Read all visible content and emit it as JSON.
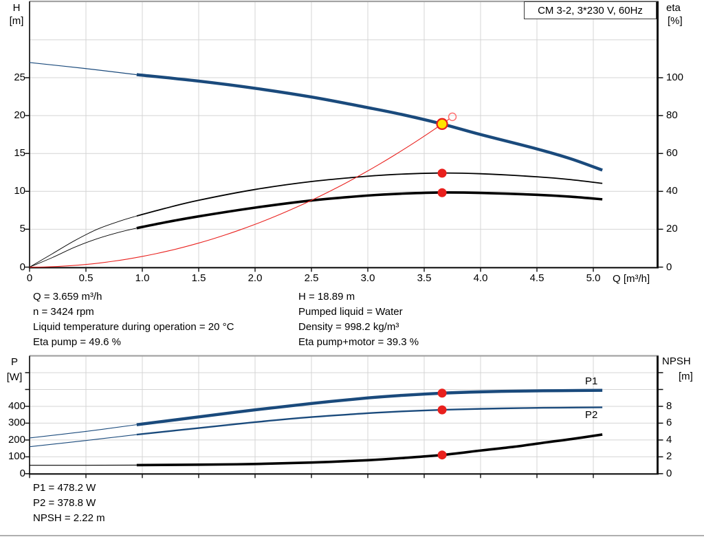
{
  "title_box": {
    "label": "CM 3-2, 3*230 V, 60Hz"
  },
  "colors": {
    "blue": "#1a4a7c",
    "red": "#e9201d",
    "pink": "#ff7070",
    "yellow": "#ffe400",
    "black": "#000000",
    "grid": "#d4d4d4",
    "frame": "#a3a3a3",
    "axis": "#111111"
  },
  "readouts": {
    "mid_left": [
      "Q = 3.659 m³/h",
      "n = 3424 rpm",
      "Liquid temperature during operation = 20 °C",
      "Eta pump = 49.6 %"
    ],
    "mid_right": [
      "H = 18.89 m",
      "Pumped liquid = Water",
      "Density = 998.2 kg/m³",
      "Eta pump+motor = 39.3 %"
    ],
    "bottom": [
      "P1 = 478.2 W",
      "P2 = 378.8 W",
      "NPSH = 2.22 m"
    ]
  },
  "chart_data": [
    {
      "type": "line",
      "title": "CM 3-2, 3*230 V, 60Hz",
      "x": {
        "label": "Q [m³/h]",
        "min": 0,
        "max": 5.57,
        "ticks": [
          {
            "v": 0,
            "label": "0"
          },
          {
            "v": 0.5,
            "label": "0.5"
          },
          {
            "v": 1,
            "label": "1.0"
          },
          {
            "v": 1.5,
            "label": "1.5"
          },
          {
            "v": 2,
            "label": "2.0"
          },
          {
            "v": 2.5,
            "label": "2.5"
          },
          {
            "v": 3,
            "label": "3.0"
          },
          {
            "v": 3.5,
            "label": "3.5"
          },
          {
            "v": 4,
            "label": "4.0"
          },
          {
            "v": 4.5,
            "label": "4.5"
          },
          {
            "v": 5,
            "label": "5.0"
          }
        ]
      },
      "y_left": {
        "name": "H",
        "unit": "[m]",
        "min": 0,
        "max": 35,
        "ticks": [
          {
            "v": 0,
            "label": "0"
          },
          {
            "v": 5,
            "label": "5"
          },
          {
            "v": 10,
            "label": "10"
          },
          {
            "v": 15,
            "label": "15"
          },
          {
            "v": 20,
            "label": "20"
          },
          {
            "v": 25,
            "label": "25"
          }
        ],
        "grid_extra": [
          30
        ]
      },
      "y_right": {
        "name": "eta",
        "unit": "[%]",
        "min": 0,
        "max": 140,
        "ticks": [
          {
            "v": 0,
            "label": "0"
          },
          {
            "v": 20,
            "label": "20"
          },
          {
            "v": 40,
            "label": "40"
          },
          {
            "v": 60,
            "label": "60"
          },
          {
            "v": 80,
            "label": "80"
          },
          {
            "v": 100,
            "label": "100"
          }
        ]
      },
      "series": [
        {
          "id": "eta-pump-curve",
          "name": "Eta pump",
          "scale": "eta",
          "color": "black",
          "split_thin_until": 0.95,
          "points": [
            [
              0,
              0
            ],
            [
              0.2,
              7
            ],
            [
              0.4,
              14
            ],
            [
              0.6,
              20
            ],
            [
              0.8,
              24.3
            ],
            [
              0.95,
              27
            ],
            [
              1.2,
              31
            ],
            [
              1.5,
              35.3
            ],
            [
              2.0,
              41
            ],
            [
              2.5,
              45.2
            ],
            [
              3.0,
              48.0
            ],
            [
              3.3,
              49.1
            ],
            [
              3.659,
              49.7
            ],
            [
              4.0,
              49.3
            ],
            [
              4.5,
              47.7
            ],
            [
              4.8,
              46.2
            ],
            [
              5.08,
              44.2
            ]
          ]
        },
        {
          "id": "eta-pump-motor-curve",
          "name": "Eta pump+motor",
          "scale": "eta",
          "color": "black",
          "split_thin_until": 0.95,
          "points": [
            [
              0,
              0
            ],
            [
              0.2,
              5
            ],
            [
              0.4,
              10.5
            ],
            [
              0.6,
              15
            ],
            [
              0.8,
              18.5
            ],
            [
              0.95,
              20.6
            ],
            [
              1.2,
              23.6
            ],
            [
              1.5,
              26.8
            ],
            [
              2.0,
              31.4
            ],
            [
              2.5,
              35.2
            ],
            [
              3.0,
              37.8
            ],
            [
              3.3,
              38.8
            ],
            [
              3.659,
              39.4
            ],
            [
              4.0,
              39.2
            ],
            [
              4.5,
              38.2
            ],
            [
              4.8,
              37.2
            ],
            [
              5.08,
              35.8
            ]
          ]
        },
        {
          "id": "system-curve",
          "name": "Duty system curve",
          "scale": "H",
          "color": "red",
          "k": 1.4112,
          "q_end": 3.72
        },
        {
          "id": "head-curve",
          "name": "QH curve",
          "scale": "H",
          "color": "blue",
          "split_thin_until": 0.95,
          "points": [
            [
              0,
              27.0
            ],
            [
              0.5,
              26.2
            ],
            [
              0.95,
              25.4
            ],
            [
              1.5,
              24.55
            ],
            [
              2.0,
              23.6
            ],
            [
              2.5,
              22.45
            ],
            [
              3.0,
              21.05
            ],
            [
              3.3,
              20.15
            ],
            [
              3.659,
              18.89
            ],
            [
              4.0,
              17.5
            ],
            [
              4.5,
              15.6
            ],
            [
              4.8,
              14.3
            ],
            [
              5.08,
              12.8
            ]
          ]
        }
      ],
      "markers": [
        {
          "id": "requested-duty-point",
          "scale": "H",
          "q": 3.75,
          "value": 19.84,
          "style": "open"
        },
        {
          "id": "duty-point",
          "scale": "H",
          "q": 3.659,
          "value": 18.89,
          "style": "duty"
        },
        {
          "id": "eta-pump-value-dot",
          "scale": "eta",
          "q": 3.659,
          "value": 49.6,
          "style": "dot"
        },
        {
          "id": "eta-pump-motor-value-dot",
          "scale": "eta",
          "q": 3.659,
          "value": 39.3,
          "style": "dot"
        }
      ]
    },
    {
      "type": "line",
      "x": {
        "label": "",
        "min": 0,
        "max": 5.57,
        "ticks": [
          {
            "v": 0,
            "label": ""
          },
          {
            "v": 0.5,
            "label": ""
          },
          {
            "v": 1,
            "label": ""
          },
          {
            "v": 1.5,
            "label": ""
          },
          {
            "v": 2,
            "label": ""
          },
          {
            "v": 2.5,
            "label": ""
          },
          {
            "v": 3,
            "label": ""
          },
          {
            "v": 3.5,
            "label": ""
          },
          {
            "v": 4,
            "label": ""
          },
          {
            "v": 4.5,
            "label": ""
          },
          {
            "v": 5,
            "label": ""
          }
        ]
      },
      "y_left": {
        "name": "P",
        "unit": "[W]",
        "min": 0,
        "max": 700,
        "ticks": [
          {
            "v": 0,
            "label": "0"
          },
          {
            "v": 100,
            "label": "100"
          },
          {
            "v": 200,
            "label": "200"
          },
          {
            "v": 300,
            "label": "300"
          },
          {
            "v": 400,
            "label": "400"
          },
          {
            "v": 500,
            "label": ""
          },
          {
            "v": 600,
            "label": ""
          }
        ]
      },
      "y_right": {
        "name": "NPSH",
        "unit": "[m]",
        "min": 0,
        "max": 14,
        "ticks": [
          {
            "v": 0,
            "label": "0"
          },
          {
            "v": 2,
            "label": "2"
          },
          {
            "v": 4,
            "label": "4"
          },
          {
            "v": 6,
            "label": "6"
          },
          {
            "v": 8,
            "label": "8"
          },
          {
            "v": 10,
            "label": ""
          },
          {
            "v": 12,
            "label": ""
          }
        ]
      },
      "series": [
        {
          "id": "p2-curve",
          "name": "P2",
          "scale": "P",
          "color": "blue",
          "split_thin_until": 0.95,
          "points": [
            [
              0,
              160
            ],
            [
              0.5,
              197
            ],
            [
              0.95,
              232
            ],
            [
              1.5,
              271
            ],
            [
              2.0,
              306
            ],
            [
              2.5,
              336
            ],
            [
              3.0,
              359
            ],
            [
              3.3,
              370
            ],
            [
              3.659,
              379
            ],
            [
              4.0,
              385
            ],
            [
              4.4,
              390
            ],
            [
              4.7,
              392
            ],
            [
              5.08,
              394
            ]
          ]
        },
        {
          "id": "p1-curve",
          "name": "P1",
          "scale": "P",
          "color": "blue",
          "split_thin_until": 0.95,
          "points": [
            [
              0,
              212
            ],
            [
              0.5,
              251
            ],
            [
              0.95,
              291
            ],
            [
              1.5,
              337
            ],
            [
              2.0,
              379
            ],
            [
              2.5,
              417
            ],
            [
              3.0,
              450
            ],
            [
              3.3,
              465
            ],
            [
              3.659,
              478
            ],
            [
              4.0,
              486
            ],
            [
              4.4,
              491
            ],
            [
              4.7,
              493
            ],
            [
              5.08,
              495
            ]
          ]
        },
        {
          "id": "npsh-curve",
          "name": "NPSH",
          "scale": "NPSH",
          "color": "black",
          "split_thin_until": 0.95,
          "points": [
            [
              0,
              1.0
            ],
            [
              0.5,
              1.0
            ],
            [
              0.95,
              1.02
            ],
            [
              1.5,
              1.07
            ],
            [
              2.0,
              1.15
            ],
            [
              2.5,
              1.32
            ],
            [
              3.0,
              1.6
            ],
            [
              3.3,
              1.85
            ],
            [
              3.659,
              2.22
            ],
            [
              4.0,
              2.75
            ],
            [
              4.3,
              3.2
            ],
            [
              4.6,
              3.75
            ],
            [
              4.8,
              4.1
            ],
            [
              5.08,
              4.65
            ]
          ]
        }
      ],
      "markers": [
        {
          "id": "p1-value-dot",
          "scale": "P",
          "q": 3.659,
          "value": 478.2,
          "style": "dot"
        },
        {
          "id": "p2-value-dot",
          "scale": "P",
          "q": 3.659,
          "value": 378.8,
          "style": "dot"
        },
        {
          "id": "npsh-value-dot",
          "scale": "NPSH",
          "q": 3.659,
          "value": 2.22,
          "style": "dot"
        }
      ],
      "curve_labels": [
        {
          "text": "P1"
        },
        {
          "text": "P2"
        }
      ]
    }
  ]
}
